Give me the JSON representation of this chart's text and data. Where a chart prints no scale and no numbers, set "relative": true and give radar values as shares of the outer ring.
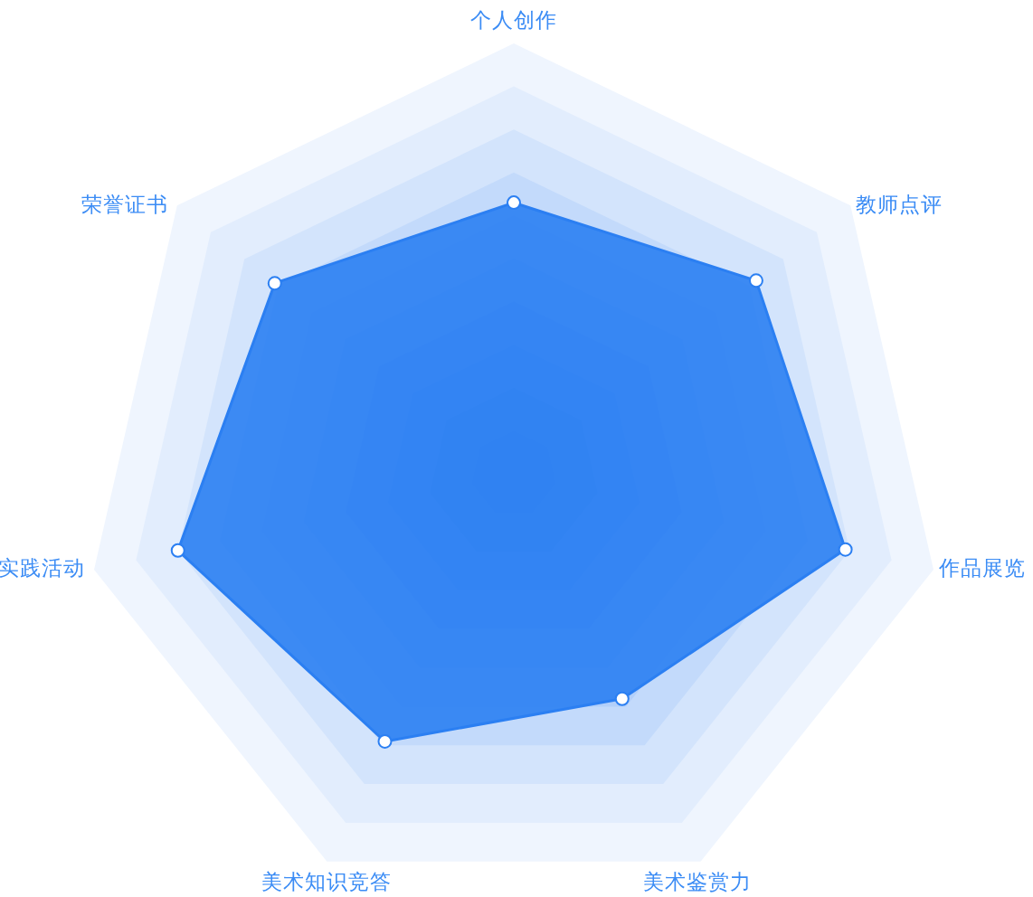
{
  "chart_data": {
    "type": "radar",
    "relative": true,
    "grid": true,
    "marker": "circle",
    "categories": [
      "个人创作",
      "教师点评",
      "作品展览",
      "美术鉴赏力",
      "美术知识竞答",
      "实践活动",
      "荣誉证书"
    ],
    "series": [
      {
        "color": "#2b7ff2",
        "values": [
          0.63,
          0.72,
          0.79,
          0.58,
          0.69,
          0.8,
          0.71
        ]
      }
    ]
  }
}
